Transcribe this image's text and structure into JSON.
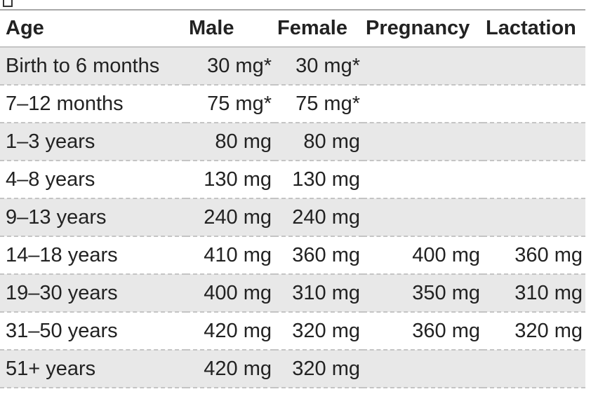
{
  "table": {
    "header": [
      "Age",
      "Male",
      "Female",
      "Pregnancy",
      "Lactation"
    ],
    "rows": [
      [
        "Birth to 6 months",
        "30 mg*",
        "30 mg*"
      ],
      [
        "7–12 months",
        "75 mg*",
        "75 mg*"
      ],
      [
        "1–3 years",
        "80 mg",
        "80 mg"
      ],
      [
        "4–8 years",
        "130 mg",
        "130 mg"
      ],
      [
        "9–13 years",
        "240 mg",
        "240 mg"
      ],
      [
        "14–18 years",
        "410 mg",
        "360 mg",
        "400 mg",
        "360 mg"
      ],
      [
        "19–30 years",
        "400 mg",
        "310 mg",
        "350 mg",
        "310 mg"
      ],
      [
        "31–50 years",
        "420 mg",
        "320 mg",
        "360 mg",
        "320 mg"
      ],
      [
        "51+ years",
        "420 mg",
        "320 mg"
      ]
    ]
  }
}
